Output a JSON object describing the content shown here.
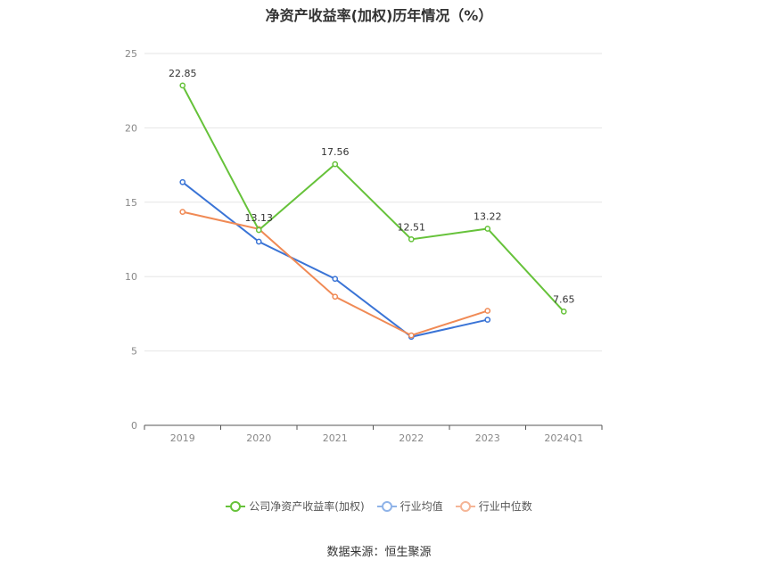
{
  "chart_data": {
    "type": "line",
    "title": "净资产收益率(加权)历年情况（%）",
    "categories": [
      "2019",
      "2020",
      "2021",
      "2022",
      "2023",
      "2024Q1"
    ],
    "ylim": [
      0,
      25
    ],
    "yticks": [
      "0",
      "5",
      "10",
      "15",
      "20",
      "25"
    ],
    "grid": true,
    "legend_position": "bottom",
    "series": [
      {
        "name": "公司净资产收益率(加权)",
        "color": "#66c23a",
        "values": [
          22.85,
          13.13,
          17.56,
          12.51,
          13.22,
          7.65
        ],
        "labels": [
          "22.85",
          "13.13",
          "17.56",
          "12.51",
          "13.22",
          "7.65"
        ]
      },
      {
        "name": "行业均值",
        "color": "#3a74d6",
        "values": [
          16.35,
          12.35,
          9.85,
          5.95,
          7.1,
          null
        ]
      },
      {
        "name": "行业中位数",
        "color": "#f08a55",
        "values": [
          14.35,
          13.2,
          8.65,
          6.05,
          7.7,
          null
        ]
      }
    ],
    "legend_colors": [
      "#66c23a",
      "#8fb3e8",
      "#f5b596"
    ]
  },
  "footer": {
    "source": "数据来源：恒生聚源"
  }
}
